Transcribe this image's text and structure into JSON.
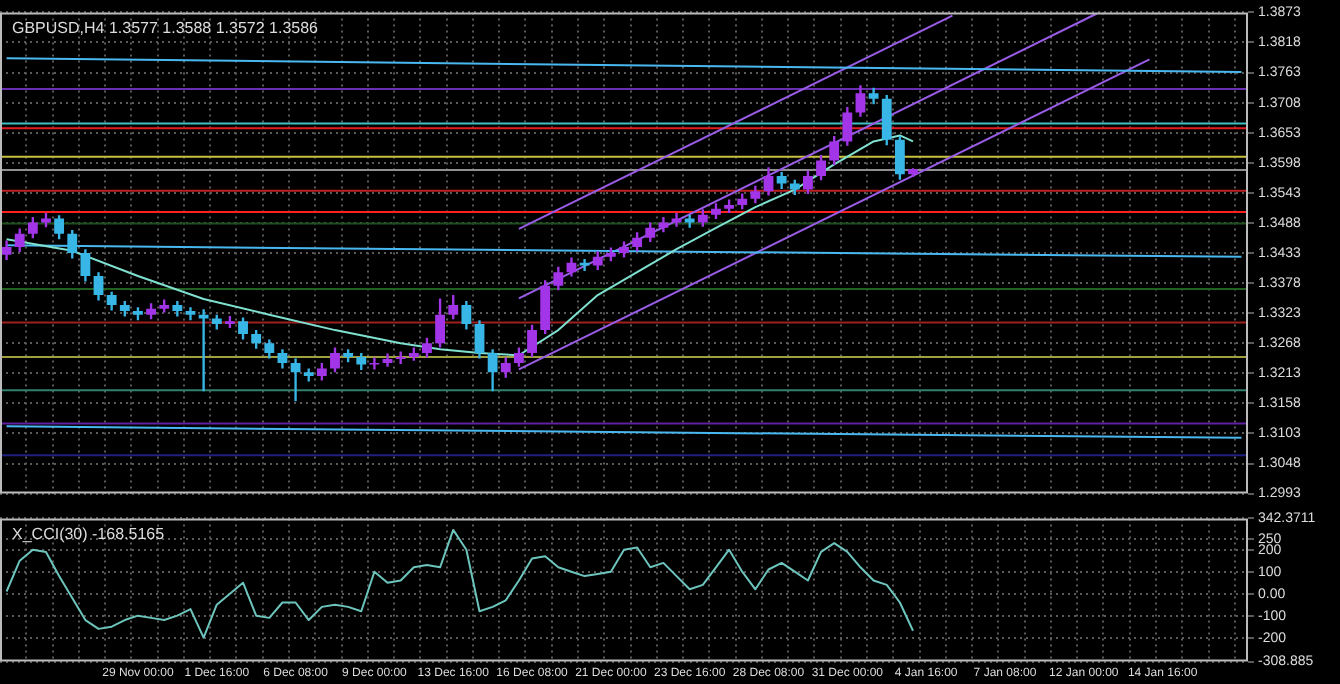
{
  "chart_data": [
    {
      "type": "candlestick",
      "title": "GBPUSD,H4 1.3577 1.3588 1.3572 1.3586",
      "categories": [
        null,
        null,
        null,
        null,
        null,
        null,
        null,
        null,
        null,
        null,
        null,
        null,
        null,
        null,
        null,
        null,
        null,
        null,
        null,
        null,
        null,
        null,
        null,
        null,
        null,
        null,
        null,
        null,
        null,
        null,
        null,
        null,
        null,
        null,
        null,
        null,
        null,
        null,
        null,
        null,
        null,
        null,
        null,
        null,
        null,
        null,
        null,
        null,
        null,
        null,
        null,
        null,
        null,
        null,
        null,
        null,
        null,
        null,
        null,
        null,
        null,
        null,
        null,
        null,
        null,
        null,
        null,
        null,
        null,
        null,
        null,
        null,
        null,
        null,
        null,
        null,
        null,
        null,
        null,
        null,
        null,
        null,
        null,
        null,
        null,
        null,
        null,
        null,
        null,
        null,
        null,
        null,
        null,
        null,
        null
      ],
      "ohlc": [
        [
          1.343,
          1.3456,
          1.342,
          1.3444
        ],
        [
          1.3444,
          1.3478,
          1.3435,
          1.3468
        ],
        [
          1.3468,
          1.3499,
          1.346,
          1.3489
        ],
        [
          1.3489,
          1.3506,
          1.348,
          1.3496
        ],
        [
          1.3496,
          1.3502,
          1.3458,
          1.3468
        ],
        [
          1.3468,
          1.3475,
          1.3423,
          1.3433
        ],
        [
          1.3433,
          1.344,
          1.3381,
          1.3391
        ],
        [
          1.3391,
          1.3398,
          1.3346,
          1.3356
        ],
        [
          1.3356,
          1.3362,
          1.3328,
          1.3338
        ],
        [
          1.3338,
          1.3345,
          1.3317,
          1.3327
        ],
        [
          1.3327,
          1.3334,
          1.331,
          1.332
        ],
        [
          1.332,
          1.3341,
          1.3312,
          1.3331
        ],
        [
          1.3331,
          1.3348,
          1.3324,
          1.3338
        ],
        [
          1.3338,
          1.3345,
          1.3317,
          1.3327
        ],
        [
          1.3327,
          1.3334,
          1.331,
          1.332
        ],
        [
          1.332,
          1.333,
          1.318,
          1.3313
        ],
        [
          1.3313,
          1.332,
          1.3293,
          1.3303
        ],
        [
          1.3303,
          1.3318,
          1.3296,
          1.3308
        ],
        [
          1.3308,
          1.3315,
          1.3275,
          1.3285
        ],
        [
          1.3285,
          1.3292,
          1.3258,
          1.3268
        ],
        [
          1.3268,
          1.3275,
          1.324,
          1.325
        ],
        [
          1.325,
          1.3257,
          1.3222,
          1.3232
        ],
        [
          1.3232,
          1.324,
          1.3162,
          1.3215
        ],
        [
          1.3215,
          1.3222,
          1.3198,
          1.3208
        ],
        [
          1.3208,
          1.3232,
          1.32,
          1.3222
        ],
        [
          1.3222,
          1.326,
          1.3215,
          1.325
        ],
        [
          1.325,
          1.3257,
          1.3233,
          1.3243
        ],
        [
          1.3243,
          1.325,
          1.3219,
          1.3229
        ],
        [
          1.3229,
          1.3242,
          1.322,
          1.3232
        ],
        [
          1.3232,
          1.3249,
          1.3225,
          1.3239
        ],
        [
          1.3239,
          1.3253,
          1.323,
          1.3243
        ],
        [
          1.3243,
          1.326,
          1.3236,
          1.325
        ],
        [
          1.325,
          1.3278,
          1.3242,
          1.3268
        ],
        [
          1.3268,
          1.335,
          1.326,
          1.332
        ],
        [
          1.332,
          1.3356,
          1.3312,
          1.3338
        ],
        [
          1.3338,
          1.3345,
          1.3293,
          1.3303
        ],
        [
          1.3303,
          1.331,
          1.324,
          1.325
        ],
        [
          1.325,
          1.3257,
          1.318,
          1.3215
        ],
        [
          1.3215,
          1.3242,
          1.3205,
          1.3232
        ],
        [
          1.3232,
          1.326,
          1.3225,
          1.325
        ],
        [
          1.325,
          1.3302,
          1.3243,
          1.3292
        ],
        [
          1.3292,
          1.3383,
          1.3285,
          1.3373
        ],
        [
          1.3373,
          1.3408,
          1.3365,
          1.3398
        ],
        [
          1.3398,
          1.3425,
          1.339,
          1.3415
        ],
        [
          1.3415,
          1.3422,
          1.34,
          1.341
        ],
        [
          1.341,
          1.3436,
          1.3402,
          1.3426
        ],
        [
          1.3426,
          1.3443,
          1.3418,
          1.3433
        ],
        [
          1.3433,
          1.3454,
          1.3425,
          1.3444
        ],
        [
          1.3444,
          1.3471,
          1.3436,
          1.3461
        ],
        [
          1.3461,
          1.3489,
          1.3453,
          1.3479
        ],
        [
          1.3479,
          1.3499,
          1.3471,
          1.3489
        ],
        [
          1.3489,
          1.3506,
          1.3481,
          1.3496
        ],
        [
          1.3496,
          1.3503,
          1.3479,
          1.3489
        ],
        [
          1.3489,
          1.3513,
          1.3481,
          1.3503
        ],
        [
          1.3503,
          1.3524,
          1.3495,
          1.3514
        ],
        [
          1.3514,
          1.3531,
          1.3506,
          1.3521
        ],
        [
          1.3521,
          1.3542,
          1.3513,
          1.3532
        ],
        [
          1.3532,
          1.3556,
          1.3524,
          1.3546
        ],
        [
          1.3546,
          1.359,
          1.3538,
          1.3574
        ],
        [
          1.3574,
          1.3581,
          1.355,
          1.356
        ],
        [
          1.356,
          1.3567,
          1.3539,
          1.3549
        ],
        [
          1.3549,
          1.3584,
          1.3541,
          1.3574
        ],
        [
          1.3574,
          1.3612,
          1.3566,
          1.3602
        ],
        [
          1.3602,
          1.3647,
          1.3594,
          1.3637
        ],
        [
          1.3637,
          1.37,
          1.3629,
          1.369
        ],
        [
          1.369,
          1.374,
          1.3682,
          1.3725
        ],
        [
          1.3725,
          1.3735,
          1.3705,
          1.3715
        ],
        [
          1.3715,
          1.3722,
          1.363,
          1.364
        ],
        [
          1.364,
          1.3647,
          1.3567,
          1.3577
        ],
        [
          1.3577,
          1.3588,
          1.3572,
          1.3586
        ],
        null,
        null,
        null,
        null,
        null,
        null,
        null,
        null,
        null,
        null,
        null,
        null,
        null,
        null,
        null,
        null,
        null,
        null,
        null,
        null,
        null,
        null,
        null,
        null,
        null
      ],
      "colors": [
        "#a335e8",
        "#a335e8",
        "#a335e8",
        "#a335e8",
        "#38b6e6",
        "#38b6e6",
        "#38b6e6",
        "#38b6e6",
        "#38b6e6",
        "#38b6e6",
        "#38b6e6",
        "#a335e8",
        "#a335e8",
        "#38b6e6",
        "#38b6e6",
        "#38b6e6",
        "#38b6e6",
        "#a335e8",
        "#38b6e6",
        "#38b6e6",
        "#38b6e6",
        "#38b6e6",
        "#38b6e6",
        "#38b6e6",
        "#a335e8",
        "#a335e8",
        "#38b6e6",
        "#38b6e6",
        "#a335e8",
        "#a335e8",
        "#a335e8",
        "#a335e8",
        "#a335e8",
        "#a335e8",
        "#a335e8",
        "#38b6e6",
        "#38b6e6",
        "#38b6e6",
        "#a335e8",
        "#a335e8",
        "#a335e8",
        "#a335e8",
        "#a335e8",
        "#a335e8",
        "#38b6e6",
        "#a335e8",
        "#a335e8",
        "#a335e8",
        "#a335e8",
        "#a335e8",
        "#a335e8",
        "#a335e8",
        "#38b6e6",
        "#a335e8",
        "#a335e8",
        "#a335e8",
        "#a335e8",
        "#a335e8",
        "#a335e8",
        "#38b6e6",
        "#38b6e6",
        "#a335e8",
        "#a335e8",
        "#a335e8",
        "#a335e8",
        "#a335e8",
        "#38b6e6",
        "#38b6e6",
        "#38b6e6",
        "#a335e8",
        null,
        null,
        null,
        null,
        null,
        null,
        null,
        null,
        null,
        null,
        null,
        null,
        null,
        null,
        null,
        null,
        null,
        null,
        null,
        null,
        null,
        null,
        null,
        null,
        null
      ],
      "series": [
        {
          "type": "line",
          "color": "#7fe0d0",
          "values": [
            1.3458,
            null,
            null,
            null,
            null,
            1.3437,
            null,
            null,
            null,
            null,
            1.3391,
            null,
            null,
            null,
            null,
            1.3349,
            null,
            null,
            null,
            null,
            1.332,
            null,
            null,
            null,
            null,
            1.3292,
            null,
            null,
            null,
            null,
            1.3268,
            null,
            null,
            1.3257,
            null,
            null,
            1.325,
            null,
            null,
            1.3246,
            null,
            null,
            1.3292,
            null,
            null,
            1.3356,
            null,
            null,
            1.3398,
            null,
            null,
            1.344,
            null,
            null,
            1.3479,
            null,
            null,
            1.3517,
            null,
            null,
            1.3549,
            null,
            null,
            1.3595,
            null,
            null,
            1.3637,
            null,
            1.3648,
            1.3637,
            null,
            null,
            null,
            null,
            null,
            null,
            null,
            null,
            null,
            null,
            null,
            null,
            null,
            null,
            null,
            null,
            null,
            null,
            null,
            null,
            null,
            null,
            null,
            null,
            null
          ]
        },
        {
          "type": "line",
          "color": "#4ab8f0",
          "values": [
            1.3789,
            null,
            null,
            null,
            null,
            null,
            null,
            null,
            null,
            null,
            null,
            null,
            null,
            null,
            null,
            null,
            null,
            null,
            null,
            null,
            null,
            null,
            null,
            null,
            null,
            null,
            null,
            null,
            null,
            null,
            null,
            null,
            null,
            null,
            null,
            null,
            null,
            null,
            null,
            null,
            null,
            null,
            null,
            null,
            null,
            null,
            null,
            null,
            null,
            null,
            null,
            null,
            null,
            null,
            null,
            null,
            null,
            null,
            null,
            null,
            null,
            null,
            null,
            null,
            null,
            null,
            null,
            null,
            null,
            null,
            null,
            null,
            null,
            null,
            null,
            null,
            null,
            null,
            null,
            null,
            null,
            null,
            null,
            null,
            null,
            null,
            null,
            null,
            null,
            null,
            null,
            null,
            null,
            null,
            1.3764
          ]
        },
        {
          "type": "line",
          "color": "#4ab8f0",
          "values": [
            1.3447,
            null,
            null,
            null,
            null,
            null,
            null,
            null,
            null,
            null,
            null,
            null,
            null,
            null,
            null,
            null,
            null,
            null,
            null,
            null,
            null,
            null,
            null,
            null,
            null,
            null,
            null,
            null,
            null,
            null,
            null,
            null,
            null,
            null,
            null,
            null,
            null,
            null,
            null,
            null,
            null,
            null,
            null,
            null,
            null,
            null,
            null,
            null,
            null,
            null,
            null,
            null,
            null,
            null,
            null,
            null,
            null,
            null,
            null,
            null,
            null,
            null,
            null,
            null,
            null,
            null,
            null,
            null,
            null,
            null,
            null,
            null,
            null,
            null,
            null,
            null,
            null,
            null,
            null,
            null,
            null,
            null,
            null,
            null,
            null,
            null,
            null,
            null,
            null,
            null,
            null,
            null,
            null,
            null,
            1.3426
          ]
        },
        {
          "type": "line",
          "color": "#4ab8f0",
          "values": [
            1.3116,
            null,
            null,
            null,
            null,
            null,
            null,
            null,
            null,
            null,
            null,
            null,
            null,
            null,
            null,
            null,
            null,
            null,
            null,
            null,
            null,
            null,
            null,
            null,
            null,
            null,
            null,
            null,
            null,
            null,
            null,
            null,
            null,
            null,
            null,
            null,
            null,
            null,
            null,
            null,
            null,
            null,
            null,
            null,
            null,
            null,
            null,
            null,
            null,
            null,
            null,
            null,
            null,
            null,
            null,
            null,
            null,
            null,
            null,
            null,
            null,
            null,
            null,
            null,
            null,
            null,
            null,
            null,
            null,
            null,
            null,
            null,
            null,
            null,
            null,
            null,
            null,
            null,
            null,
            null,
            null,
            null,
            null,
            null,
            null,
            null,
            null,
            null,
            null,
            null,
            null,
            null,
            null,
            null,
            1.3095
          ]
        },
        {
          "type": "line",
          "color": "#9a5ce6",
          "values": [
            null,
            null,
            null,
            null,
            null,
            null,
            null,
            null,
            null,
            null,
            null,
            null,
            null,
            null,
            null,
            null,
            null,
            null,
            null,
            null,
            null,
            null,
            null,
            null,
            null,
            null,
            null,
            null,
            null,
            null,
            null,
            null,
            null,
            null,
            null,
            null,
            null,
            null,
            null,
            1.3477,
            null,
            null,
            null,
            null,
            null,
            null,
            null,
            null,
            null,
            null,
            null,
            null,
            null,
            null,
            null,
            null,
            null,
            null,
            null,
            null,
            null,
            null,
            null,
            null,
            null,
            null,
            null,
            null,
            null,
            null,
            null,
            null,
            1.3867,
            null,
            null,
            null,
            null,
            null,
            null,
            null,
            null,
            null,
            null,
            null,
            null,
            null,
            null,
            null,
            null,
            null,
            null,
            null,
            null,
            null,
            null
          ]
        },
        {
          "type": "line",
          "color": "#9a5ce6",
          "values": [
            null,
            null,
            null,
            null,
            null,
            null,
            null,
            null,
            null,
            null,
            null,
            null,
            null,
            null,
            null,
            null,
            null,
            null,
            null,
            null,
            null,
            null,
            null,
            null,
            null,
            null,
            null,
            null,
            null,
            null,
            null,
            null,
            null,
            null,
            null,
            null,
            null,
            null,
            null,
            1.335,
            null,
            null,
            null,
            null,
            null,
            null,
            null,
            null,
            null,
            null,
            null,
            null,
            null,
            null,
            null,
            null,
            null,
            null,
            null,
            null,
            null,
            null,
            null,
            null,
            null,
            null,
            null,
            null,
            null,
            null,
            null,
            null,
            null,
            null,
            null,
            null,
            null,
            null,
            null,
            null,
            null,
            null,
            null,
            1.3871,
            null,
            null,
            null,
            null,
            null,
            null,
            null,
            null,
            null,
            null,
            null
          ]
        },
        {
          "type": "line",
          "color": "#9a5ce6",
          "values": [
            null,
            null,
            null,
            null,
            null,
            null,
            null,
            null,
            null,
            null,
            null,
            null,
            null,
            null,
            null,
            null,
            null,
            null,
            null,
            null,
            null,
            null,
            null,
            null,
            null,
            null,
            null,
            null,
            null,
            null,
            null,
            null,
            null,
            null,
            null,
            null,
            null,
            null,
            null,
            1.322,
            null,
            null,
            null,
            null,
            null,
            null,
            null,
            null,
            null,
            null,
            null,
            null,
            null,
            null,
            null,
            null,
            null,
            null,
            null,
            null,
            null,
            null,
            null,
            null,
            null,
            null,
            null,
            null,
            null,
            null,
            null,
            null,
            null,
            null,
            null,
            null,
            null,
            null,
            null,
            null,
            null,
            null,
            null,
            null,
            null,
            null,
            null,
            1.3787,
            null,
            null,
            null,
            null,
            null,
            null,
            null
          ]
        }
      ],
      "ylim": [
        1.2993,
        1.3873
      ],
      "yticks": [
        1.3873,
        1.3818,
        1.3763,
        1.3708,
        1.3653,
        1.3598,
        1.3543,
        1.3488,
        1.3433,
        1.3378,
        1.3323,
        1.3268,
        1.3213,
        1.3158,
        1.3103,
        1.3048,
        1.2993
      ],
      "ref_lines": [
        {
          "axis": "y",
          "value": 1.3733,
          "color": "#6a2fb0"
        },
        {
          "axis": "y",
          "value": 1.367,
          "color": "#40c0c0"
        },
        {
          "axis": "y",
          "value": 1.3661,
          "color": "#e02020"
        },
        {
          "axis": "y",
          "value": 1.3609,
          "color": "#c8c040"
        },
        {
          "axis": "y",
          "value": 1.3585,
          "color": "#909090"
        },
        {
          "axis": "y",
          "value": 1.3547,
          "color": "#c02020"
        },
        {
          "axis": "y",
          "value": 1.3508,
          "color": "#ff2020"
        },
        {
          "axis": "y",
          "value": 1.3487,
          "color": "#205020"
        },
        {
          "axis": "y",
          "value": 1.3367,
          "color": "#206020"
        },
        {
          "axis": "y",
          "value": 1.3306,
          "color": "#a02020"
        },
        {
          "axis": "y",
          "value": 1.3243,
          "color": "#a0a040"
        },
        {
          "axis": "y",
          "value": 1.3182,
          "color": "#308070"
        },
        {
          "axis": "y",
          "value": 1.3121,
          "color": "#6020a0"
        },
        {
          "axis": "y",
          "value": 1.3063,
          "color": "#202080"
        }
      ],
      "grid": true,
      "tick_labels": "y"
    },
    {
      "type": "line",
      "title": "X_CCI(30) -168.5165",
      "categories": [
        null,
        null,
        null,
        null,
        null,
        null,
        null,
        null,
        null,
        null,
        "29 Nov 00:00",
        null,
        null,
        null,
        null,
        null,
        "1 Dec 16:00",
        null,
        null,
        null,
        null,
        null,
        "6 Dec 08:00",
        null,
        null,
        null,
        null,
        null,
        "9 Dec 00:00",
        null,
        null,
        null,
        null,
        null,
        "13 Dec 16:00",
        null,
        null,
        null,
        null,
        null,
        "16 Dec 08:00",
        null,
        null,
        null,
        null,
        null,
        "21 Dec 00:00",
        null,
        null,
        null,
        null,
        null,
        "23 Dec 16:00",
        null,
        null,
        null,
        null,
        null,
        "28 Dec 08:00",
        null,
        null,
        null,
        null,
        null,
        "31 Dec 00:00",
        null,
        null,
        null,
        null,
        null,
        "4 Jan 16:00",
        null,
        null,
        null,
        null,
        null,
        "7 Jan 08:00",
        null,
        null,
        null,
        null,
        null,
        "12 Jan 00:00",
        null,
        null,
        null,
        null,
        null,
        "14 Jan 16:00",
        null,
        null,
        null,
        null,
        null,
        null
      ],
      "series": [
        {
          "color": "#6cc4bc",
          "values": [
            10,
            150,
            200,
            190,
            80,
            -20,
            -120,
            -160,
            -150,
            -120,
            -100,
            -110,
            -120,
            -100,
            -70,
            -200,
            -50,
            0,
            50,
            -100,
            -110,
            -40,
            -40,
            -120,
            -60,
            -50,
            -60,
            -80,
            100,
            50,
            60,
            120,
            130,
            120,
            290,
            200,
            -80,
            -60,
            -30,
            60,
            160,
            170,
            120,
            100,
            80,
            90,
            100,
            200,
            210,
            120,
            140,
            80,
            20,
            40,
            120,
            200,
            100,
            20,
            110,
            140,
            100,
            60,
            190,
            230,
            190,
            120,
            60,
            40,
            -40,
            -168.5165,
            null,
            null,
            null,
            null,
            null,
            null,
            null,
            null,
            null,
            null,
            null,
            null,
            null,
            null,
            null,
            null,
            null,
            null,
            null,
            null,
            null,
            null,
            null,
            null,
            null
          ]
        }
      ],
      "ylim": [
        -308.885,
        342.3711
      ],
      "yticks": [
        {
          "value": 342.3711,
          "label": "342.3711"
        },
        250,
        200,
        100,
        {
          "value": 0,
          "label": "0.00"
        },
        -100,
        -200,
        {
          "value": -308.885,
          "label": "-308.885"
        }
      ],
      "grid": true
    }
  ]
}
